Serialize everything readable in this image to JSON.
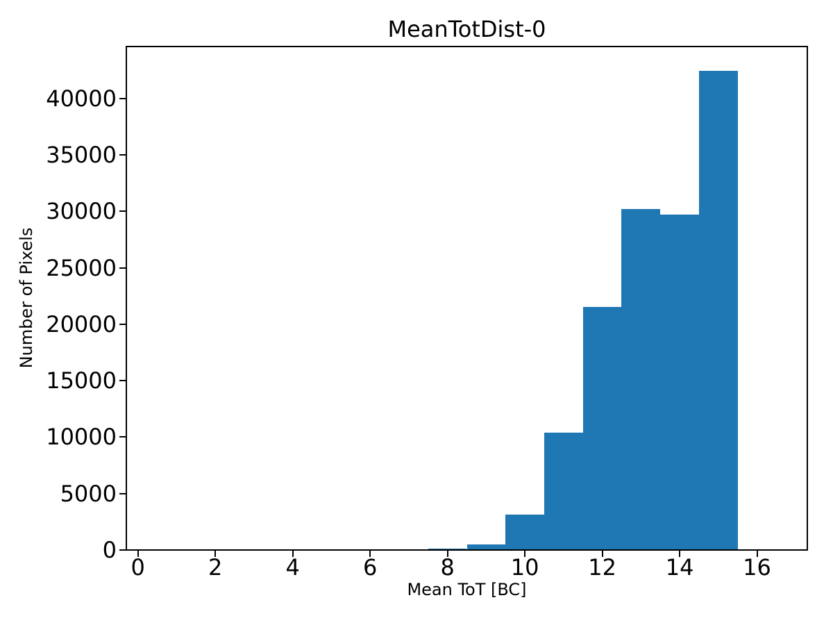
{
  "figure": {
    "background": "#ffffff",
    "text_color": "#000000"
  },
  "chart_data": {
    "type": "bar",
    "subtype": "histogram",
    "title": "MeanTotDist-0",
    "xlabel": "Mean ToT [BC]",
    "ylabel": "Number of Pixels",
    "bar_color": "#1f77b4",
    "grid": false,
    "bin_edges": [
      7.5,
      8.5,
      9.5,
      10.5,
      11.5,
      12.5,
      13.5,
      14.5,
      15.5
    ],
    "counts": [
      120,
      510,
      3150,
      10420,
      21560,
      30220,
      29720,
      42430
    ],
    "xlim": [
      -0.3,
      17.3
    ],
    "ylim": [
      0,
      44600
    ],
    "xticks": [
      0,
      2,
      4,
      6,
      8,
      10,
      12,
      14,
      16
    ],
    "yticks": [
      0,
      5000,
      10000,
      15000,
      20000,
      25000,
      30000,
      35000,
      40000
    ],
    "xtick_labels": [
      "0",
      "2",
      "4",
      "6",
      "8",
      "10",
      "12",
      "14",
      "16"
    ],
    "ytick_labels": [
      "0",
      "5000",
      "10000",
      "15000",
      "20000",
      "25000",
      "30000",
      "35000",
      "40000"
    ]
  }
}
